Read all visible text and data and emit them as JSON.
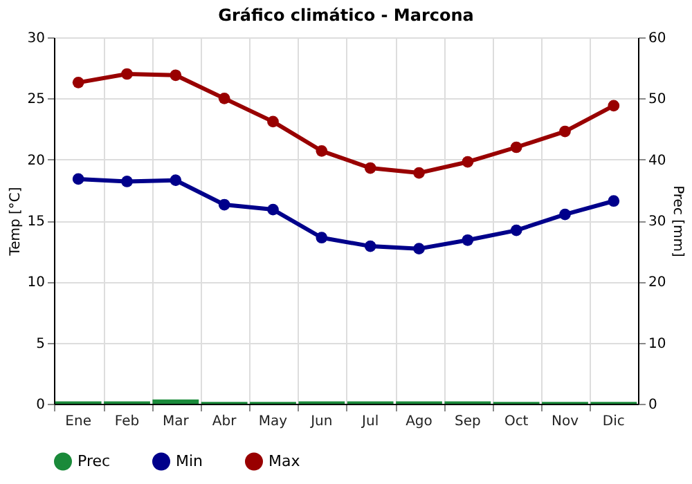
{
  "chart_data": {
    "type": "line",
    "title": "Gráfico climático - Marcona",
    "ylabel": "Temp [°C]",
    "y2label": "Prec [mm]",
    "categories": [
      "Ene",
      "Feb",
      "Mar",
      "Abr",
      "May",
      "Jun",
      "Jul",
      "Ago",
      "Sep",
      "Oct",
      "Nov",
      "Dic"
    ],
    "series": [
      {
        "name": "Prec",
        "type": "bar",
        "axis": "y2",
        "color": "#1a8a3a",
        "values": [
          0.4,
          0.4,
          0.7,
          0.3,
          0.3,
          0.4,
          0.4,
          0.4,
          0.4,
          0.3,
          0.3,
          0.3
        ]
      },
      {
        "name": "Min",
        "color": "#00008b",
        "values": [
          18.4,
          18.2,
          18.3,
          16.3,
          15.9,
          13.6,
          12.9,
          12.7,
          13.4,
          14.2,
          15.5,
          16.6
        ]
      },
      {
        "name": "Max",
        "color": "#990000",
        "values": [
          26.3,
          27.0,
          26.9,
          25.0,
          23.1,
          20.7,
          19.3,
          18.9,
          19.8,
          21.0,
          22.3,
          24.4
        ]
      }
    ],
    "ylim": [
      0,
      30
    ],
    "yticks": [
      0,
      5,
      10,
      15,
      20,
      25,
      30
    ],
    "y2lim": [
      0,
      60
    ],
    "y2ticks": [
      0,
      10,
      20,
      30,
      40,
      50,
      60
    ],
    "grid": true,
    "legend": "bottom",
    "marker": "circle",
    "line_style": "solid"
  }
}
